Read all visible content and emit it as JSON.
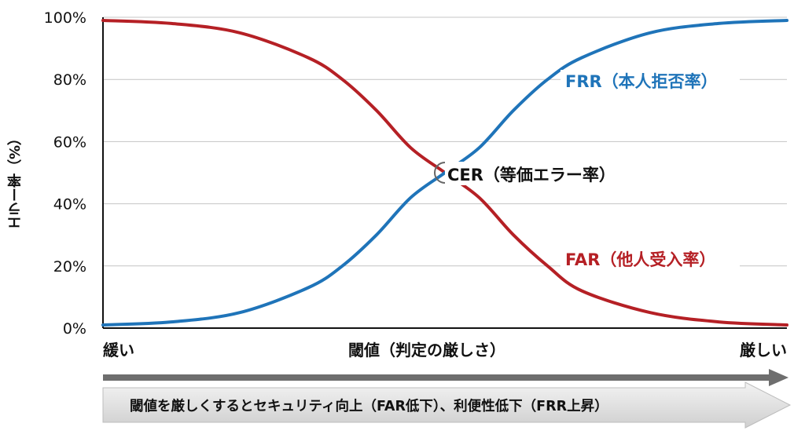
{
  "chart_data": {
    "type": "line",
    "title": "",
    "ylabel": "エラー率（%）",
    "xlabel": "閾値（判定の厳しさ）",
    "x_left_label": "緩い",
    "x_right_label": "厳しい",
    "ylim": [
      0,
      100
    ],
    "xlim": [
      0,
      1
    ],
    "yticks": [
      "0%",
      "20%",
      "40%",
      "60%",
      "80%",
      "100%"
    ],
    "grid": true,
    "series": [
      {
        "name": "FAR（他人受入率）",
        "color": "#b52025",
        "x": [
          0,
          0.1,
          0.2,
          0.3,
          0.35,
          0.4,
          0.45,
          0.5,
          0.55,
          0.6,
          0.65,
          0.7,
          0.8,
          0.9,
          1.0
        ],
        "y": [
          99,
          98,
          95,
          87,
          80,
          70,
          58,
          50,
          42,
          30,
          20,
          12,
          5,
          2,
          1
        ]
      },
      {
        "name": "FRR（本人拒否率）",
        "color": "#1f74b9",
        "x": [
          0,
          0.1,
          0.2,
          0.3,
          0.35,
          0.4,
          0.45,
          0.5,
          0.55,
          0.6,
          0.65,
          0.7,
          0.8,
          0.9,
          1.0
        ],
        "y": [
          1,
          2,
          5,
          13,
          20,
          30,
          42,
          50,
          58,
          70,
          80,
          87,
          95,
          98,
          99
        ]
      }
    ],
    "annotation": {
      "label": "CER（等価エラー率）",
      "x": 0.5,
      "y": 50
    },
    "arrow_text": "閾値を厳しくするとセキュリティ向上（FAR低下）、利便性低下（FRR上昇）"
  }
}
